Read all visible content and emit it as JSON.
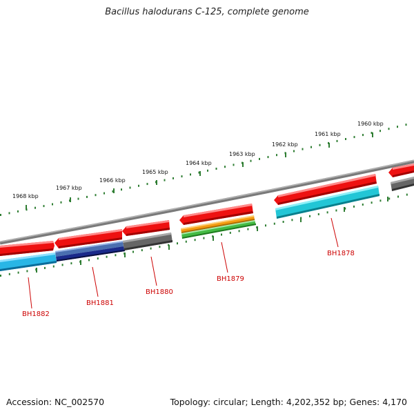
{
  "title": "Bacillus halodurans C-125, complete genome",
  "footer": {
    "accession": "Accession: NC_002570",
    "summary": "Topology: circular; Length: 4,202,352 bp; Genes: 4,170"
  },
  "ruler_labels": [
    "1968 kbp",
    "1967 kbp",
    "1966 kbp",
    "1965 kbp",
    "1964 kbp",
    "1963 kbp",
    "1962 kbp",
    "1961 kbp",
    "1960 kbp"
  ],
  "gene_labels": [
    "BH1882",
    "BH1881",
    "BH1880",
    "BH1879",
    "BH1878"
  ],
  "colors": {
    "label": "#cc0000",
    "tick": "#2e7d32",
    "backbone": "#808080",
    "forward_gene": "#ee1111",
    "pseudo_gene": "#666666",
    "cds_cyan": "#29b6e6",
    "cds_navy": "#1a2a8a",
    "cds_orange": "#f39c12",
    "cds_green": "#44bb44",
    "cds_teal": "#22c6d6"
  }
}
